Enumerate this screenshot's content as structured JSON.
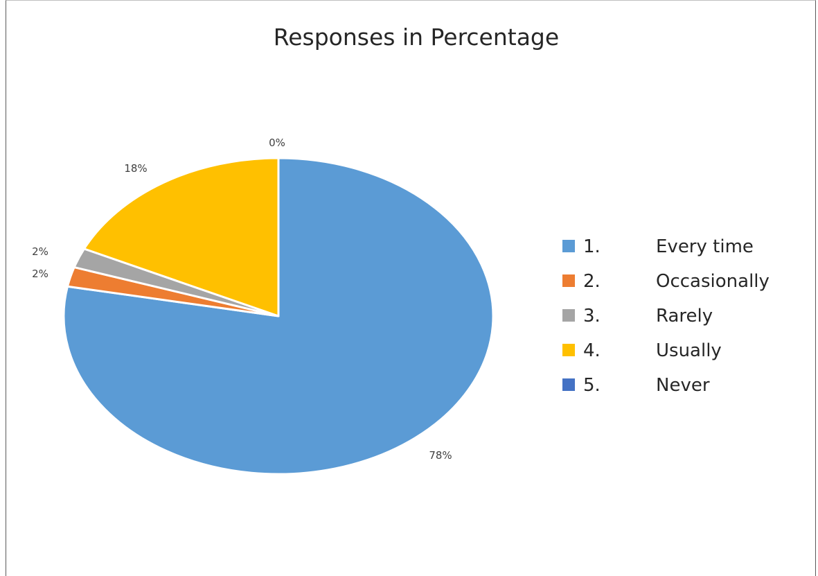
{
  "chart_data": {
    "type": "pie",
    "title": "Responses in Percentage",
    "legend_position": "right",
    "categories": [
      "1.",
      "2.",
      "3.",
      "4.",
      "5."
    ],
    "category_labels": [
      "Every time",
      "Occasionally",
      "Rarely",
      "Usually",
      "Never"
    ],
    "values": [
      78,
      2,
      2,
      18,
      0
    ],
    "data_labels": [
      "78%",
      "2%",
      "2%",
      "18%",
      "0%"
    ],
    "colors": [
      "#5B9BD5",
      "#ED7D31",
      "#A5A5A5",
      "#FFC000",
      "#4472C4"
    ]
  }
}
